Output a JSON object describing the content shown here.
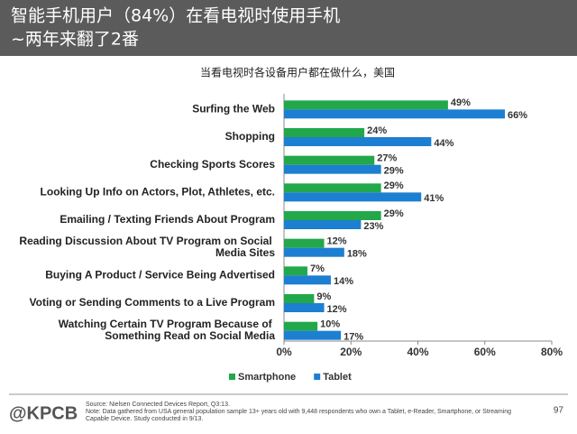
{
  "slide_title": [
    "智能手机用户（84%）在看电视时使用手机",
    "~两年来翻了2番"
  ],
  "chart_data": {
    "type": "hbar",
    "title": "当看电视时各设备用户都在做什么，美国",
    "categories": [
      "Surfing the Web",
      "Shopping",
      "Checking Sports Scores",
      "Looking Up Info on Actors, Plot, Athletes, etc.",
      "Emailing / Texting Friends About Program",
      "Reading Discussion About TV Program on Social Media Sites",
      "Buying A Product / Service Being Advertised",
      "Voting or Sending Comments to a Live Program",
      "Watching Certain TV Program Because of Something Read on Social Media"
    ],
    "series": [
      {
        "name": "Smartphone",
        "color": "#22a84a",
        "values": [
          49,
          24,
          27,
          29,
          29,
          12,
          7,
          9,
          10
        ],
        "value_labels": [
          "49%",
          "24%",
          "27%",
          "29%",
          "29%",
          "12%",
          "7%",
          "9%",
          "10%"
        ]
      },
      {
        "name": "Tablet",
        "color": "#1d7fd1",
        "values": [
          66,
          44,
          29,
          41,
          23,
          18,
          14,
          12,
          17
        ],
        "value_labels": [
          "66%",
          "44%",
          "29%",
          "41%",
          "23%",
          "18%",
          "14%",
          "12%",
          "17%"
        ]
      }
    ],
    "xlim": [
      0,
      80
    ],
    "xticks": [
      {
        "value": 0,
        "label": "0%"
      },
      {
        "value": 20,
        "label": "20%"
      },
      {
        "value": 40,
        "label": "40%"
      },
      {
        "value": 60,
        "label": "60%"
      },
      {
        "value": 80,
        "label": "80%"
      }
    ],
    "legend": "bottom"
  },
  "footer": {
    "logo": "@KPCB",
    "notes": [
      "Source: Nielsen Connected Devices Report, Q3:13.",
      "Note: Data gathered from USA general population sample 13+ years old with 9,448 respondents who own a Tablet, e-Reader, Smartphone, or Streaming",
      "Capable Device. Study conducted in 9/13."
    ],
    "page": "97"
  }
}
